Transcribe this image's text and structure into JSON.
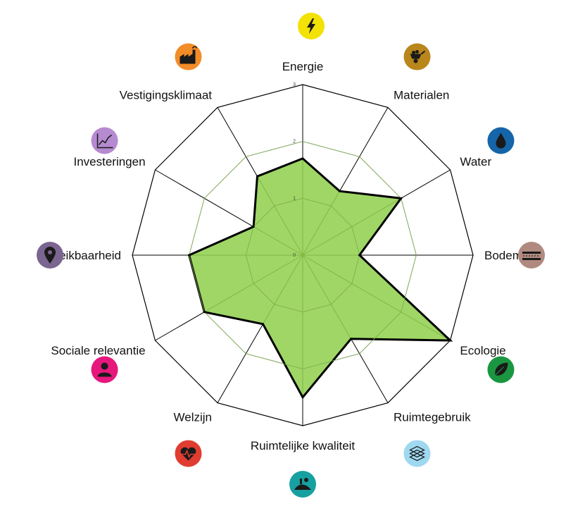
{
  "chart_data": {
    "type": "radar",
    "title": "",
    "rlim": [
      0,
      3
    ],
    "ticks": [
      "0",
      "1",
      "2",
      "3"
    ],
    "grid": true,
    "categories": [
      "Energie",
      "Materialen",
      "Water",
      "Bodem",
      "Ecologie",
      "Ruimtegebruik",
      "Ruimtelijke kwaliteit",
      "Welzijn",
      "Sociale relevantie",
      "Bereikbaarheid",
      "Investeringen",
      "Vestigingsklimaat"
    ],
    "series": [
      {
        "values": [
          1.7,
          1.3,
          2.0,
          1.0,
          3.0,
          1.7,
          2.5,
          1.4,
          2.0,
          2.0,
          1.0,
          1.6
        ]
      }
    ],
    "colors": {
      "fill": "#92d050",
      "line": "#000000",
      "grid_outer": "#000000",
      "grid_inner": "#a6a6a6"
    },
    "icons": [
      {
        "name": "lightning-icon",
        "color": "#f2e205"
      },
      {
        "name": "wheelbarrow-icon",
        "color": "#b8861b"
      },
      {
        "name": "water-drop-icon",
        "color": "#1565a8"
      },
      {
        "name": "soil-layers-icon",
        "color": "#b08a80"
      },
      {
        "name": "leaf-icon",
        "color": "#1a9641"
      },
      {
        "name": "stacked-layers-icon",
        "color": "#9fd8f0"
      },
      {
        "name": "landscape-icon",
        "color": "#17a0a0"
      },
      {
        "name": "heart-pulse-icon",
        "color": "#e03c31"
      },
      {
        "name": "person-icon",
        "color": "#e6177d"
      },
      {
        "name": "location-pin-icon",
        "color": "#7b6591"
      },
      {
        "name": "growth-chart-icon",
        "color": "#b58ad0"
      },
      {
        "name": "factory-icon",
        "color": "#f28c28"
      }
    ]
  }
}
